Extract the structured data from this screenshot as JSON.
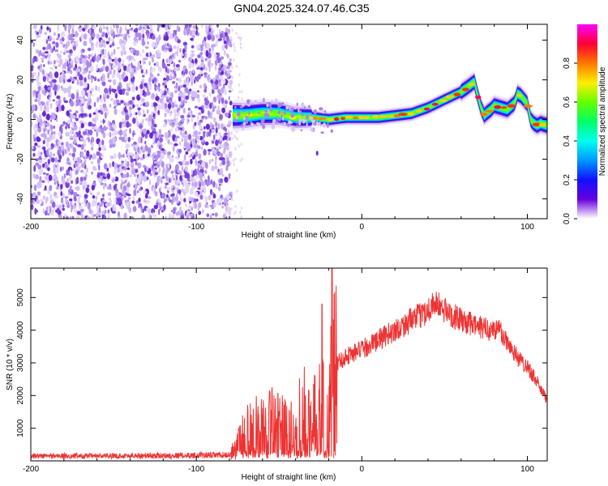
{
  "figure": {
    "title": "GN04.2025.324.07.46.C35"
  },
  "chart_data": [
    {
      "id": "spectrogram",
      "type": "heatmap",
      "xlabel": "Height of straight line (km)",
      "ylabel": "Frequency (Hz)",
      "xlim": [
        -200,
        112
      ],
      "ylim": [
        -50,
        48
      ],
      "xticks": [
        -200,
        -100,
        0,
        100
      ],
      "yticks": [
        -40,
        -20,
        0,
        20,
        40
      ],
      "noise_region_x": [
        -200,
        -79
      ],
      "noise_frequency_range": [
        -50,
        48
      ],
      "signal_track": {
        "x": [
          -78,
          -70,
          -60,
          -50,
          -40,
          -30,
          -20,
          -10,
          0,
          10,
          20,
          30,
          40,
          50,
          55,
          60,
          65,
          68,
          70,
          72,
          74,
          75,
          78,
          80,
          84,
          88,
          92,
          93,
          94,
          96,
          98,
          100,
          102,
          104,
          106,
          108,
          112
        ],
        "y": [
          2,
          2,
          3,
          3,
          1,
          1,
          0,
          1,
          1,
          1,
          2,
          3,
          6,
          10,
          12,
          14,
          17,
          19,
          12,
          6,
          2,
          3,
          5,
          7,
          6,
          5,
          8,
          10,
          13,
          12,
          10,
          8,
          0,
          -2,
          -3,
          -2,
          -3
        ]
      },
      "colorbar": {
        "label": "Normalized spectral amplitude",
        "ticks": [
          "0.0",
          "0.2",
          "0.4",
          "0.6",
          "0.8"
        ],
        "range": [
          0,
          1
        ],
        "colors": [
          "#ff00ff",
          "#ff0033",
          "#ff7700",
          "#ffee00",
          "#66ff00",
          "#00ff66",
          "#00ffee",
          "#0099ff",
          "#1111ff",
          "#6600dd",
          "#ffffff"
        ]
      }
    },
    {
      "id": "snr",
      "type": "line",
      "xlabel": "Height of straight line (km)",
      "ylabel": "SNR (10 * v/v)",
      "xlim": [
        -200,
        112
      ],
      "ylim": [
        0,
        5900
      ],
      "xticks": [
        -200,
        -100,
        0,
        100
      ],
      "yticks": [
        1000,
        2000,
        3000,
        4000,
        5000
      ],
      "color": "#ee3333",
      "series": [
        {
          "name": "SNR",
          "x": [
            -200,
            -150,
            -100,
            -80,
            -76,
            -70,
            -60,
            -50,
            -45,
            -40,
            -35,
            -30,
            -25,
            -22,
            -18,
            -15,
            -12,
            -10,
            -5,
            0,
            10,
            20,
            30,
            40,
            43,
            45,
            50,
            55,
            60,
            65,
            70,
            75,
            80,
            83,
            85,
            90,
            95,
            100,
            105,
            110,
            112
          ],
          "y": [
            150,
            150,
            170,
            180,
            400,
            900,
            1100,
            1200,
            1150,
            1400,
            1500,
            1300,
            1800,
            2000,
            2600,
            3000,
            3100,
            3200,
            3300,
            3400,
            3700,
            4000,
            4300,
            4600,
            4850,
            4800,
            4600,
            4450,
            4300,
            4200,
            4100,
            4050,
            4000,
            4050,
            3850,
            3500,
            3100,
            2900,
            2500,
            2000,
            1900
          ]
        }
      ],
      "peaks": [
        {
          "x": -18,
          "y": 5900
        },
        {
          "x": -24,
          "y": 4800
        }
      ]
    }
  ]
}
